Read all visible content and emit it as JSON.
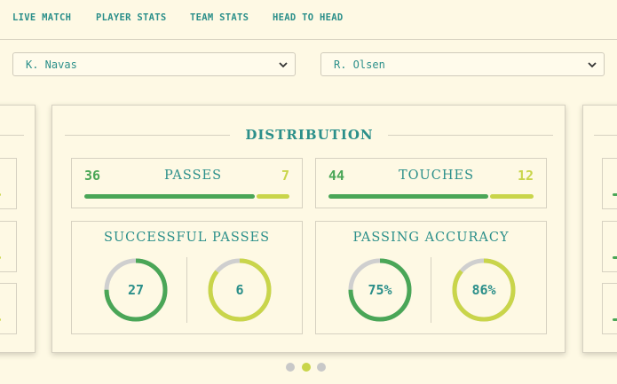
{
  "tabs": [
    {
      "label": "LIVE MATCH"
    },
    {
      "label": "PLAYER STATS"
    },
    {
      "label": "TEAM STATS"
    },
    {
      "label": "HEAD TO HEAD",
      "active": true
    }
  ],
  "players": {
    "home": {
      "name": "K. Navas",
      "icon": "chevron-down-icon"
    },
    "away": {
      "name": "R. Olsen",
      "icon": "chevron-down-icon"
    }
  },
  "colors": {
    "primary": "#2b8f8a",
    "home": "#4aa657",
    "away": "#c9d54a",
    "ring_track": "#cfcfcf",
    "background": "#fef9e4"
  },
  "distribution": {
    "title": "DISTRIBUTION",
    "passes": {
      "label": "PASSES",
      "home": "36",
      "away": "7",
      "home_share": 0.837
    },
    "touches": {
      "label": "TOUCHES",
      "home": "44",
      "away": "12",
      "home_share": 0.786
    },
    "successful_passes": {
      "label": "SUCCESSFUL PASSES",
      "home": {
        "value": "27",
        "ratio": 0.75
      },
      "away": {
        "value": "6",
        "ratio": 0.857
      }
    },
    "passing_accuracy": {
      "label": "PASSING ACCURACY",
      "home": {
        "value": "75%",
        "ratio": 0.75
      },
      "away": {
        "value": "86%",
        "ratio": 0.86
      }
    }
  },
  "carousel": {
    "count": 3,
    "active_index": 1
  }
}
